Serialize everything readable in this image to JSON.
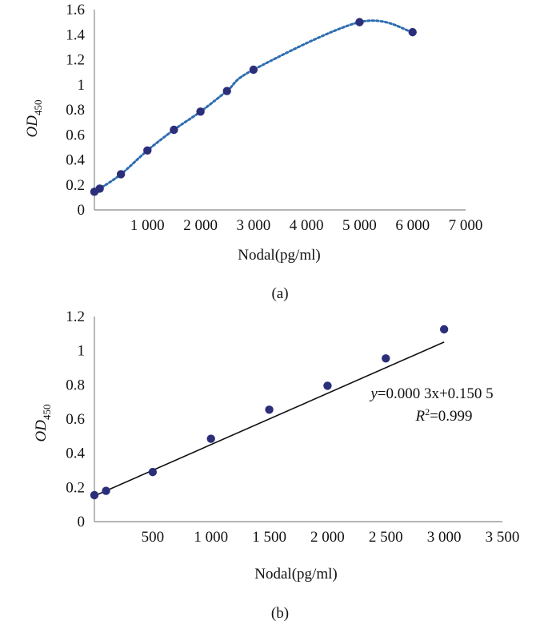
{
  "chart_data": [
    {
      "type": "line",
      "panel_label": "(a)",
      "xlabel": "Nodal(pg/ml)",
      "ylabel": "OD",
      "ylabel_sub": "450",
      "xlim": [
        0,
        7000
      ],
      "ylim": [
        0,
        1.6
      ],
      "x_ticks": [
        1000,
        2000,
        3000,
        4000,
        5000,
        6000,
        7000
      ],
      "x_tick_labels": [
        "1 000",
        "2 000",
        "3 000",
        "4 000",
        "5 000",
        "6 000",
        "7 000"
      ],
      "y_ticks": [
        0,
        0.2,
        0.4,
        0.6,
        0.8,
        1,
        1.2,
        1.4,
        1.6
      ],
      "y_tick_labels": [
        "0",
        "0.2",
        "0.4",
        "0.6",
        "0.8",
        "1",
        "1.2",
        "1.4",
        "1.6"
      ],
      "grid": false,
      "line_style": "dotted smooth",
      "series": [
        {
          "x": [
            0,
            100,
            500,
            1000,
            1500,
            2000,
            2500,
            3000,
            5000,
            6000
          ],
          "y": [
            0.145,
            0.17,
            0.285,
            0.475,
            0.64,
            0.785,
            0.95,
            1.12,
            1.5,
            1.42
          ]
        }
      ],
      "colors": {
        "line": "#2e6db0",
        "marker": "#2b2f7a",
        "axis": "#888888"
      }
    },
    {
      "type": "scatter",
      "panel_label": "(b)",
      "xlabel": "Nodal(pg/ml)",
      "ylabel": "OD",
      "ylabel_sub": "450",
      "xlim": [
        0,
        3500
      ],
      "ylim": [
        0,
        1.2
      ],
      "x_ticks": [
        500,
        1000,
        1500,
        2000,
        2500,
        3000,
        3500
      ],
      "x_tick_labels": [
        "500",
        "1 000",
        "1 500",
        "2 000",
        "2 500",
        "3 000",
        "3 500"
      ],
      "y_ticks": [
        0,
        0.2,
        0.4,
        0.6,
        0.8,
        1,
        1.2
      ],
      "y_tick_labels": [
        "0",
        "0.2",
        "0.4",
        "0.6",
        "0.8",
        "1",
        "1.2"
      ],
      "grid": false,
      "series": [
        {
          "x": [
            0,
            100,
            500,
            1000,
            1500,
            2000,
            2500,
            3000
          ],
          "y": [
            0.155,
            0.18,
            0.29,
            0.485,
            0.655,
            0.795,
            0.955,
            1.125
          ]
        }
      ],
      "trendline": {
        "slope": 0.0003,
        "intercept": 0.1505,
        "x_range": [
          0,
          3000
        ]
      },
      "equation_var": "y",
      "equation_text": "=0.000 3x+0.150 5",
      "r2_var": "R",
      "r2_sup": "2",
      "r2_text": "=0.999",
      "colors": {
        "line": "#111111",
        "marker": "#2b2f7a",
        "axis": "#888888"
      }
    }
  ]
}
